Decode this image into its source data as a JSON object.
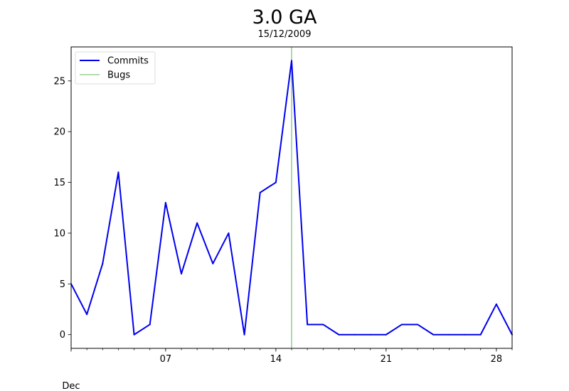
{
  "chart_data": {
    "type": "line",
    "title": "3.0 GA",
    "subtitle": "15/12/2009",
    "xlabel": "",
    "ylabel": "",
    "x_axis_month_label": "Dec",
    "x": [
      "2009-12-01",
      "2009-12-02",
      "2009-12-03",
      "2009-12-04",
      "2009-12-05",
      "2009-12-06",
      "2009-12-07",
      "2009-12-08",
      "2009-12-09",
      "2009-12-10",
      "2009-12-11",
      "2009-12-12",
      "2009-12-13",
      "2009-12-14",
      "2009-12-15",
      "2009-12-16",
      "2009-12-17",
      "2009-12-18",
      "2009-12-19",
      "2009-12-20",
      "2009-12-21",
      "2009-12-22",
      "2009-12-23",
      "2009-12-24",
      "2009-12-25",
      "2009-12-26",
      "2009-12-27",
      "2009-12-28",
      "2009-12-29"
    ],
    "series": [
      {
        "name": "Commits",
        "color": "#0000ee",
        "values": [
          5,
          2,
          7,
          16,
          0,
          1,
          13,
          6,
          11,
          7,
          10,
          0,
          14,
          15,
          27,
          1,
          1,
          0,
          0,
          0,
          0,
          1,
          1,
          0,
          0,
          0,
          0,
          3,
          0
        ]
      }
    ],
    "markers": [
      {
        "name": "Bugs",
        "x": "2009-12-15",
        "color": "#2ca02c"
      }
    ],
    "x_ticks": [
      {
        "x": "2009-12-07",
        "label": "07"
      },
      {
        "x": "2009-12-14",
        "label": "14"
      },
      {
        "x": "2009-12-21",
        "label": "21"
      },
      {
        "x": "2009-12-28",
        "label": "28"
      }
    ],
    "y_ticks": [
      0,
      5,
      10,
      15,
      20,
      25
    ],
    "xlim": [
      "2009-12-01",
      "2009-12-29"
    ],
    "ylim": [
      -1.35,
      28.35
    ],
    "grid": false,
    "legend": "top-left"
  }
}
